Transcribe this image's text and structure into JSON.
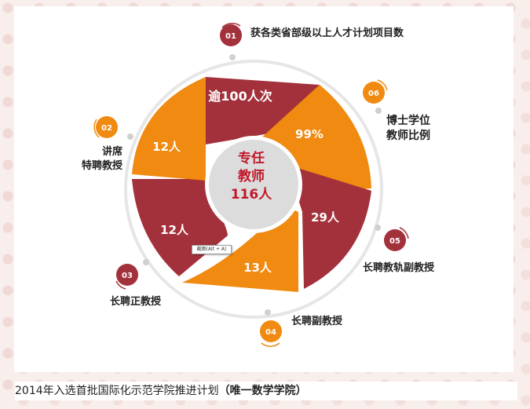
{
  "center": {
    "line1": "专任",
    "line2": "教师",
    "line3": "116人"
  },
  "segments": [
    {
      "value": "逾100人次",
      "color": "#a3313b"
    },
    {
      "value": "99%",
      "color": "#f08a10"
    },
    {
      "value": "29人",
      "color": "#a3313b"
    },
    {
      "value": "13人",
      "color": "#f08a10"
    },
    {
      "value": "12人",
      "color": "#a3313b"
    },
    {
      "value": "12人",
      "color": "#f08a10"
    }
  ],
  "callouts": [
    {
      "num": "01",
      "lines": [
        "获各类省部级以上人才计划项目数"
      ],
      "color": "#a3313b"
    },
    {
      "num": "02",
      "lines": [
        "讲席",
        "特聘教授"
      ],
      "color": "#f08a10"
    },
    {
      "num": "03",
      "lines": [
        "长聘正教授"
      ],
      "color": "#a3313b"
    },
    {
      "num": "04",
      "lines": [
        "长聘副教授"
      ],
      "color": "#f08a10"
    },
    {
      "num": "05",
      "lines": [
        "长聘教轨副教授"
      ],
      "color": "#a3313b"
    },
    {
      "num": "06",
      "lines": [
        "博士学位",
        "教师比例"
      ],
      "color": "#f08a10"
    }
  ],
  "tooltip": "截图(Alt + A)",
  "caption": {
    "main": "2014年入选首批国际化示范学院推进计划",
    "bold": "（唯一数学学院）"
  }
}
